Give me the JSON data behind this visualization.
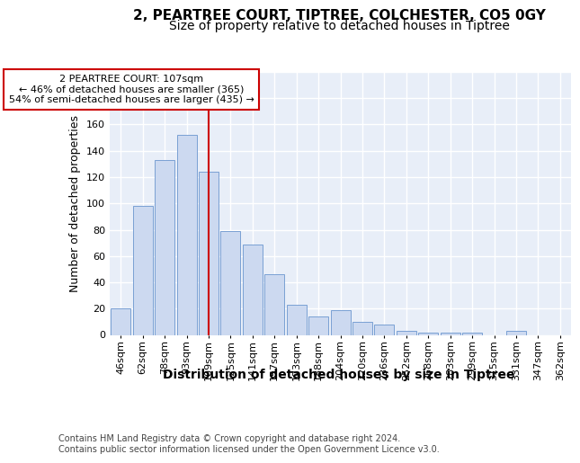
{
  "title1": "2, PEARTREE COURT, TIPTREE, COLCHESTER, CO5 0GY",
  "title2": "Size of property relative to detached houses in Tiptree",
  "xlabel": "Distribution of detached houses by size in Tiptree",
  "ylabel": "Number of detached properties",
  "categories": [
    "46sqm",
    "62sqm",
    "78sqm",
    "93sqm",
    "109sqm",
    "125sqm",
    "141sqm",
    "157sqm",
    "173sqm",
    "188sqm",
    "204sqm",
    "220sqm",
    "236sqm",
    "252sqm",
    "268sqm",
    "283sqm",
    "299sqm",
    "315sqm",
    "331sqm",
    "347sqm",
    "362sqm"
  ],
  "values": [
    20,
    98,
    133,
    152,
    124,
    79,
    69,
    46,
    23,
    14,
    19,
    10,
    8,
    3,
    2,
    2,
    2,
    0,
    3,
    0,
    0
  ],
  "bar_color": "#ccd9f0",
  "bar_edge_color": "#7aa0d4",
  "vline_x_idx": 4,
  "vline_color": "#cc0000",
  "annotation_text": "2 PEARTREE COURT: 107sqm\n← 46% of detached houses are smaller (365)\n54% of semi-detached houses are larger (435) →",
  "annotation_box_facecolor": "#ffffff",
  "annotation_box_edgecolor": "#cc0000",
  "footer_text": "Contains HM Land Registry data © Crown copyright and database right 2024.\nContains public sector information licensed under the Open Government Licence v3.0.",
  "ylim": [
    0,
    200
  ],
  "yticks": [
    0,
    20,
    40,
    60,
    80,
    100,
    120,
    140,
    160,
    180,
    200
  ],
  "fig_bg": "#ffffff",
  "plot_bg": "#e8eef8",
  "grid_color": "#ffffff",
  "title1_fontsize": 11,
  "title2_fontsize": 10,
  "xlabel_fontsize": 10,
  "ylabel_fontsize": 9,
  "tick_fontsize": 8,
  "annot_fontsize": 8,
  "footer_fontsize": 7
}
